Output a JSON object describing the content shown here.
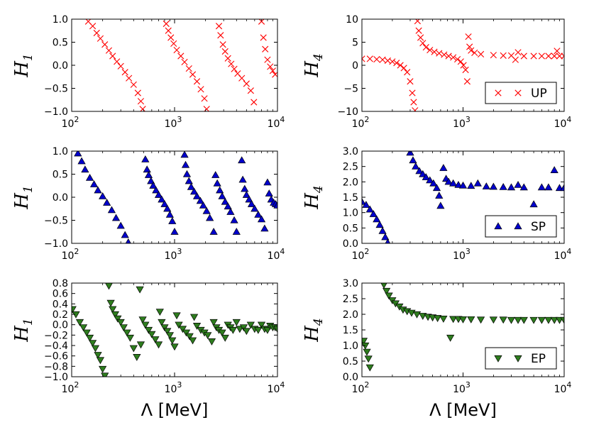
{
  "chart_data": [
    {
      "type": "scatter",
      "id": "up_h1",
      "xscale": "log",
      "xlim": [
        100,
        10000
      ],
      "ylim": [
        -1.0,
        1.0
      ],
      "yticks": [
        1.0,
        0.5,
        0.0,
        -0.5,
        -1.0
      ],
      "ytick_labels": [
        "1.0",
        "0.5",
        "0.0",
        "−0.5",
        "−1.0"
      ],
      "ylabel": "H",
      "ylabel_sub": "1",
      "xlabel": "",
      "marker": "x",
      "color": "#ff0000",
      "x": [
        145,
        160,
        175,
        190,
        210,
        230,
        250,
        275,
        300,
        330,
        360,
        400,
        440,
        470,
        490,
        830,
        870,
        920,
        980,
        1050,
        1150,
        1250,
        1380,
        1500,
        1650,
        1800,
        1950,
        2050,
        2700,
        2800,
        2950,
        3100,
        3300,
        3550,
        3800,
        4100,
        4500,
        5000,
        5500,
        5900,
        7000,
        7300,
        7600,
        8000,
        8500,
        9000,
        9500
      ],
      "y": [
        0.95,
        0.85,
        0.7,
        0.58,
        0.45,
        0.32,
        0.2,
        0.08,
        -0.02,
        -0.15,
        -0.28,
        -0.42,
        -0.6,
        -0.78,
        -0.95,
        0.9,
        0.75,
        0.6,
        0.47,
        0.33,
        0.2,
        0.07,
        -0.07,
        -0.2,
        -0.35,
        -0.52,
        -0.72,
        -0.95,
        0.85,
        0.65,
        0.45,
        0.3,
        0.15,
        0.03,
        -0.08,
        -0.18,
        -0.28,
        -0.4,
        -0.55,
        -0.8,
        0.95,
        0.6,
        0.35,
        0.12,
        -0.03,
        -0.12,
        -0.2
      ]
    },
    {
      "type": "scatter",
      "id": "up_h4",
      "xscale": "log",
      "xlim": [
        100,
        10000
      ],
      "ylim": [
        -10,
        10
      ],
      "yticks": [
        10,
        5,
        0,
        -5,
        -10
      ],
      "ytick_labels": [
        "10",
        "5",
        "0",
        "−5",
        "−10"
      ],
      "ylabel": "H",
      "ylabel_sub": "4",
      "xlabel": "",
      "marker": "x",
      "color": "#ff0000",
      "legend": "UP",
      "x": [
        100,
        120,
        140,
        160,
        180,
        200,
        220,
        240,
        260,
        280,
        300,
        315,
        325,
        335,
        355,
        365,
        380,
        400,
        430,
        470,
        520,
        580,
        650,
        720,
        800,
        880,
        950,
        1010,
        1060,
        1100,
        1130,
        1160,
        1200,
        1300,
        1500,
        2000,
        2500,
        3000,
        3300,
        3500,
        4000,
        5000,
        6000,
        7000,
        8000,
        8500,
        9000,
        10000
      ],
      "y": [
        1.4,
        1.4,
        1.3,
        1.2,
        1.0,
        0.8,
        0.5,
        0.0,
        -0.6,
        -1.5,
        -3.5,
        -6.0,
        -8.0,
        -9.8,
        9.6,
        7.5,
        6.0,
        4.8,
        3.9,
        3.3,
        2.9,
        2.6,
        2.3,
        2.0,
        1.7,
        1.3,
        0.8,
        0.0,
        -1.0,
        -3.5,
        6.2,
        4.0,
        3.2,
        2.7,
        2.4,
        2.2,
        2.1,
        2.1,
        1.2,
        2.8,
        2.0,
        2.0,
        2.0,
        2.0,
        2.0,
        3.1,
        2.0,
        2.0
      ]
    },
    {
      "type": "scatter",
      "id": "sp_h1",
      "xscale": "log",
      "xlim": [
        100,
        10000
      ],
      "ylim": [
        -1.0,
        1.0
      ],
      "yticks": [
        1.0,
        0.5,
        0.0,
        -0.5,
        -1.0
      ],
      "ytick_labels": [
        "1.0",
        "0.5",
        "0.0",
        "−0.5",
        "−1.0"
      ],
      "ylabel": "H",
      "ylabel_sub": "1",
      "xlabel": "",
      "marker": "^",
      "color": "#0000cc",
      "x": [
        115,
        125,
        135,
        150,
        165,
        180,
        200,
        220,
        245,
        270,
        300,
        330,
        355,
        520,
        540,
        560,
        590,
        620,
        660,
        700,
        750,
        800,
        850,
        900,
        950,
        1000,
        1250,
        1280,
        1320,
        1380,
        1450,
        1550,
        1650,
        1780,
        1900,
        2050,
        2200,
        2400,
        2500,
        2600,
        2750,
        2900,
        3100,
        3300,
        3500,
        3800,
        4000,
        4500,
        4600,
        4800,
        5000,
        5300,
        5600,
        6000,
        6500,
        7000,
        7500,
        8000,
        8300,
        8700,
        9200,
        9600,
        10000
      ],
      "y": [
        0.95,
        0.78,
        0.6,
        0.42,
        0.28,
        0.15,
        0.02,
        -0.12,
        -0.28,
        -0.45,
        -0.62,
        -0.82,
        -0.98,
        0.82,
        0.6,
        0.48,
        0.35,
        0.25,
        0.15,
        0.05,
        -0.05,
        -0.15,
        -0.25,
        -0.38,
        -0.52,
        -0.75,
        0.92,
        0.7,
        0.5,
        0.35,
        0.22,
        0.12,
        0.02,
        -0.08,
        -0.18,
        -0.3,
        -0.45,
        -0.75,
        0.48,
        0.3,
        0.15,
        0.02,
        -0.1,
        -0.2,
        -0.32,
        -0.5,
        -0.75,
        0.8,
        0.38,
        0.18,
        0.05,
        -0.05,
        -0.15,
        -0.25,
        -0.38,
        -0.48,
        -0.68,
        0.32,
        0.08,
        -0.05,
        -0.12,
        -0.15,
        -0.18
      ]
    },
    {
      "type": "scatter",
      "id": "sp_h4",
      "xscale": "log",
      "xlim": [
        100,
        10000
      ],
      "ylim": [
        0.0,
        3.0
      ],
      "yticks": [
        3.0,
        2.5,
        2.0,
        1.5,
        1.0,
        0.5,
        0.0
      ],
      "ytick_labels": [
        "3.0",
        "2.5",
        "2.0",
        "1.5",
        "1.0",
        "0.5",
        "0.0"
      ],
      "ylabel": "H",
      "ylabel_sub": "4",
      "xlabel": "",
      "marker": "^",
      "color": "#0000cc",
      "legend": "SP",
      "x": [
        100,
        110,
        120,
        130,
        140,
        150,
        160,
        170,
        180,
        300,
        320,
        340,
        370,
        400,
        430,
        470,
        510,
        550,
        580,
        600,
        640,
        680,
        720,
        800,
        900,
        1000,
        1200,
        1400,
        1700,
        2000,
        2500,
        3000,
        3500,
        4000,
        5000,
        6000,
        7000,
        8000,
        9000,
        10000
      ],
      "y": [
        1.35,
        1.25,
        1.1,
        0.95,
        0.78,
        0.6,
        0.4,
        0.2,
        0.02,
        2.95,
        2.7,
        2.5,
        2.35,
        2.25,
        2.15,
        2.05,
        1.95,
        1.8,
        1.55,
        1.22,
        2.45,
        2.1,
        2.0,
        1.95,
        1.9,
        1.88,
        1.87,
        1.95,
        1.85,
        1.84,
        1.83,
        1.82,
        1.9,
        1.82,
        1.27,
        1.82,
        1.82,
        2.38,
        1.8,
        1.8
      ]
    },
    {
      "type": "scatter",
      "id": "ep_h1",
      "xscale": "log",
      "xlim": [
        100,
        10000
      ],
      "ylim": [
        -1.0,
        0.8
      ],
      "yticks": [
        0.8,
        0.6,
        0.4,
        0.2,
        0.0,
        -0.2,
        -0.4,
        -0.6,
        -0.8,
        -1.0
      ],
      "ytick_labels": [
        "0.8",
        "0.6",
        "0.4",
        "0.2",
        "0.0",
        "−0.2",
        "−0.4",
        "−0.6",
        "−0.8",
        "−1.0"
      ],
      "ylabel": "H",
      "ylabel_sub": "1",
      "xlabel": "Λ [MeV]",
      "marker": "v",
      "color": "#2e7d1e",
      "x": [
        102,
        110,
        120,
        130,
        140,
        150,
        160,
        170,
        180,
        190,
        200,
        210,
        230,
        240,
        250,
        265,
        280,
        300,
        320,
        345,
        370,
        400,
        430,
        460,
        470,
        490,
        520,
        560,
        600,
        650,
        700,
        720,
        750,
        800,
        850,
        900,
        950,
        1000,
        1050,
        1100,
        1200,
        1300,
        1400,
        1500,
        1550,
        1650,
        1800,
        1950,
        2100,
        2300,
        2400,
        2550,
        2700,
        2900,
        3100,
        3300,
        3500,
        3700,
        4000,
        4300,
        4700,
        5000,
        5500,
        6000,
        6500,
        7000,
        7500,
        8000,
        8500,
        9000,
        9500,
        10000
      ],
      "y": [
        0.3,
        0.2,
        0.05,
        -0.05,
        -0.15,
        -0.25,
        -0.35,
        -0.45,
        -0.58,
        -0.68,
        -0.85,
        -0.98,
        0.75,
        0.42,
        0.3,
        0.2,
        0.12,
        0.05,
        -0.05,
        -0.15,
        -0.25,
        -0.45,
        -0.62,
        0.68,
        -0.38,
        0.1,
        0.0,
        -0.1,
        -0.18,
        -0.28,
        -0.38,
        0.25,
        0.05,
        -0.05,
        -0.12,
        -0.2,
        -0.3,
        -0.42,
        0.18,
        0.0,
        -0.08,
        -0.15,
        -0.22,
        -0.3,
        0.15,
        -0.02,
        -0.1,
        -0.15,
        -0.2,
        -0.32,
        0.05,
        -0.05,
        -0.1,
        -0.15,
        -0.25,
        0.0,
        -0.05,
        -0.1,
        0.05,
        -0.08,
        -0.05,
        -0.12,
        0.0,
        -0.08,
        -0.1,
        0.0,
        -0.08,
        -0.1,
        -0.02,
        -0.05,
        -0.05,
        -0.08
      ]
    },
    {
      "type": "scatter",
      "id": "ep_h4",
      "xscale": "log",
      "xlim": [
        100,
        10000
      ],
      "ylim": [
        0.0,
        3.0
      ],
      "yticks": [
        3.0,
        2.5,
        2.0,
        1.5,
        1.0,
        0.5,
        0.0
      ],
      "ytick_labels": [
        "3.0",
        "2.5",
        "2.0",
        "1.5",
        "1.0",
        "0.5",
        "0.0"
      ],
      "ylabel": "H",
      "ylabel_sub": "4",
      "xlabel": "Λ [MeV]",
      "marker": "v",
      "color": "#2e7d1e",
      "legend": "EP",
      "x": [
        104,
        108,
        112,
        116,
        120,
        165,
        175,
        185,
        200,
        215,
        235,
        255,
        280,
        310,
        350,
        400,
        450,
        500,
        560,
        640,
        750,
        800,
        900,
        1000,
        1200,
        1500,
        2000,
        2500,
        3000,
        3500,
        4000,
        5000,
        6000,
        7000,
        8000,
        9000,
        10000
      ],
      "y": [
        1.15,
        1.0,
        0.8,
        0.58,
        0.3,
        2.95,
        2.75,
        2.6,
        2.45,
        2.35,
        2.25,
        2.15,
        2.1,
        2.05,
        2.0,
        1.95,
        1.92,
        1.9,
        1.88,
        1.86,
        1.25,
        1.85,
        1.85,
        1.84,
        1.84,
        1.83,
        1.83,
        1.83,
        1.82,
        1.82,
        1.82,
        1.82,
        1.82,
        1.82,
        1.82,
        1.82,
        1.82
      ]
    }
  ]
}
